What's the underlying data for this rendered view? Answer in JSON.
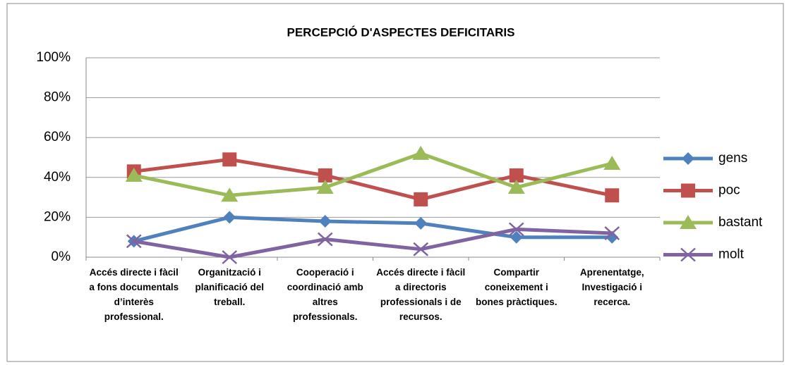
{
  "chart_data": {
    "type": "line",
    "title": "PERCEPCIÓ  D'ASPECTES  DEFICITARIS",
    "categories": [
      "Accés directe i fàcil a fons documentals d’interès professional.",
      "Organització i planificació del treball.",
      "Cooperació i coordinació amb altres professionals.",
      "Accés directe i fàcil a directoris professionals i de recursos.",
      "Compartir coneixement i bones pràctiques.",
      "Aprenentatge, Investigació i recerca."
    ],
    "series": [
      {
        "name": "gens",
        "color": "#4f81bd",
        "marker": "diamond",
        "values": [
          8,
          20,
          18,
          17,
          10,
          10
        ]
      },
      {
        "name": "poc",
        "color": "#c0504d",
        "marker": "square",
        "values": [
          43,
          49,
          41,
          29,
          41,
          31
        ]
      },
      {
        "name": "bastant",
        "color": "#9bbb59",
        "marker": "triangle",
        "values": [
          41,
          31,
          35,
          52,
          35,
          47
        ]
      },
      {
        "name": "molt",
        "color": "#8064a2",
        "marker": "x",
        "values": [
          8,
          0,
          9,
          4,
          14,
          12
        ]
      }
    ],
    "ylim": [
      0,
      100
    ],
    "yticks": [
      {
        "value": 0,
        "label": "0%"
      },
      {
        "value": 20,
        "label": "20%"
      },
      {
        "value": 40,
        "label": "40%"
      },
      {
        "value": 60,
        "label": "60%"
      },
      {
        "value": 80,
        "label": "80%"
      },
      {
        "value": 100,
        "label": "100%"
      }
    ],
    "grid": true,
    "legend": "right"
  }
}
